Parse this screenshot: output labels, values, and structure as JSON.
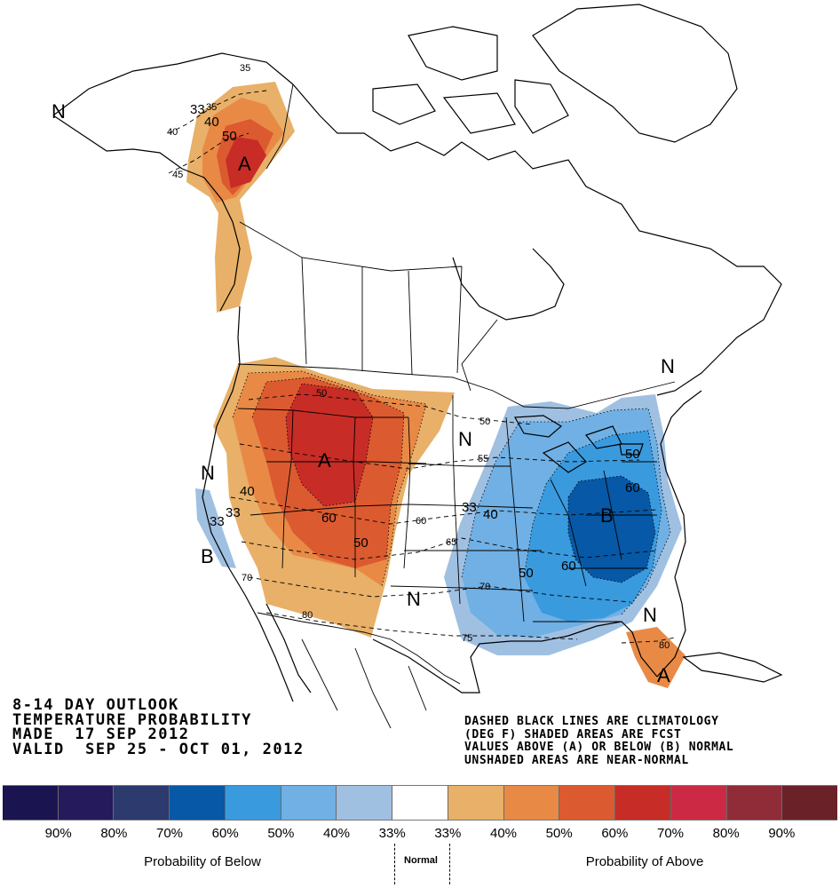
{
  "header": {
    "line1": "8-14 DAY OUTLOOK",
    "line2": "TEMPERATURE PROBABILITY",
    "line3": "MADE  17 SEP 2012",
    "line4": "VALID  SEP 25 - OCT 01, 2012"
  },
  "note": {
    "line1": "DASHED BLACK LINES ARE CLIMATOLOGY",
    "line2": "(DEG F) SHADED AREAS ARE FCST",
    "line3": "VALUES ABOVE (A) OR BELOW (B) NORMAL",
    "line4": "UNSHADED AREAS ARE NEAR-NORMAL"
  },
  "map_labels": {
    "n": "N",
    "a": "A",
    "b": "B"
  },
  "contour_labels": {
    "c33": "33",
    "c35": "35",
    "c40": "40",
    "c45": "45",
    "c50": "50",
    "c55": "55",
    "c60": "60",
    "c65": "65",
    "c70": "70",
    "c75": "75",
    "c80": "80"
  },
  "legend": {
    "colors": [
      "#1a1450",
      "#241a5c",
      "#2c3a6e",
      "#0758a6",
      "#3a9ade",
      "#70b0e4",
      "#a0c0e2",
      "#ffffff",
      "#e8b068",
      "#e88a46",
      "#dc5a30",
      "#c82c26",
      "#cc2a44",
      "#902c38",
      "#6a2228"
    ],
    "ticks": [
      "90%",
      "80%",
      "70%",
      "60%",
      "50%",
      "40%",
      "33%",
      "33%",
      "40%",
      "50%",
      "60%",
      "70%",
      "80%",
      "90%"
    ],
    "below_label": "Probability of Below",
    "normal_label": "Normal",
    "above_label": "Probability of Above"
  }
}
